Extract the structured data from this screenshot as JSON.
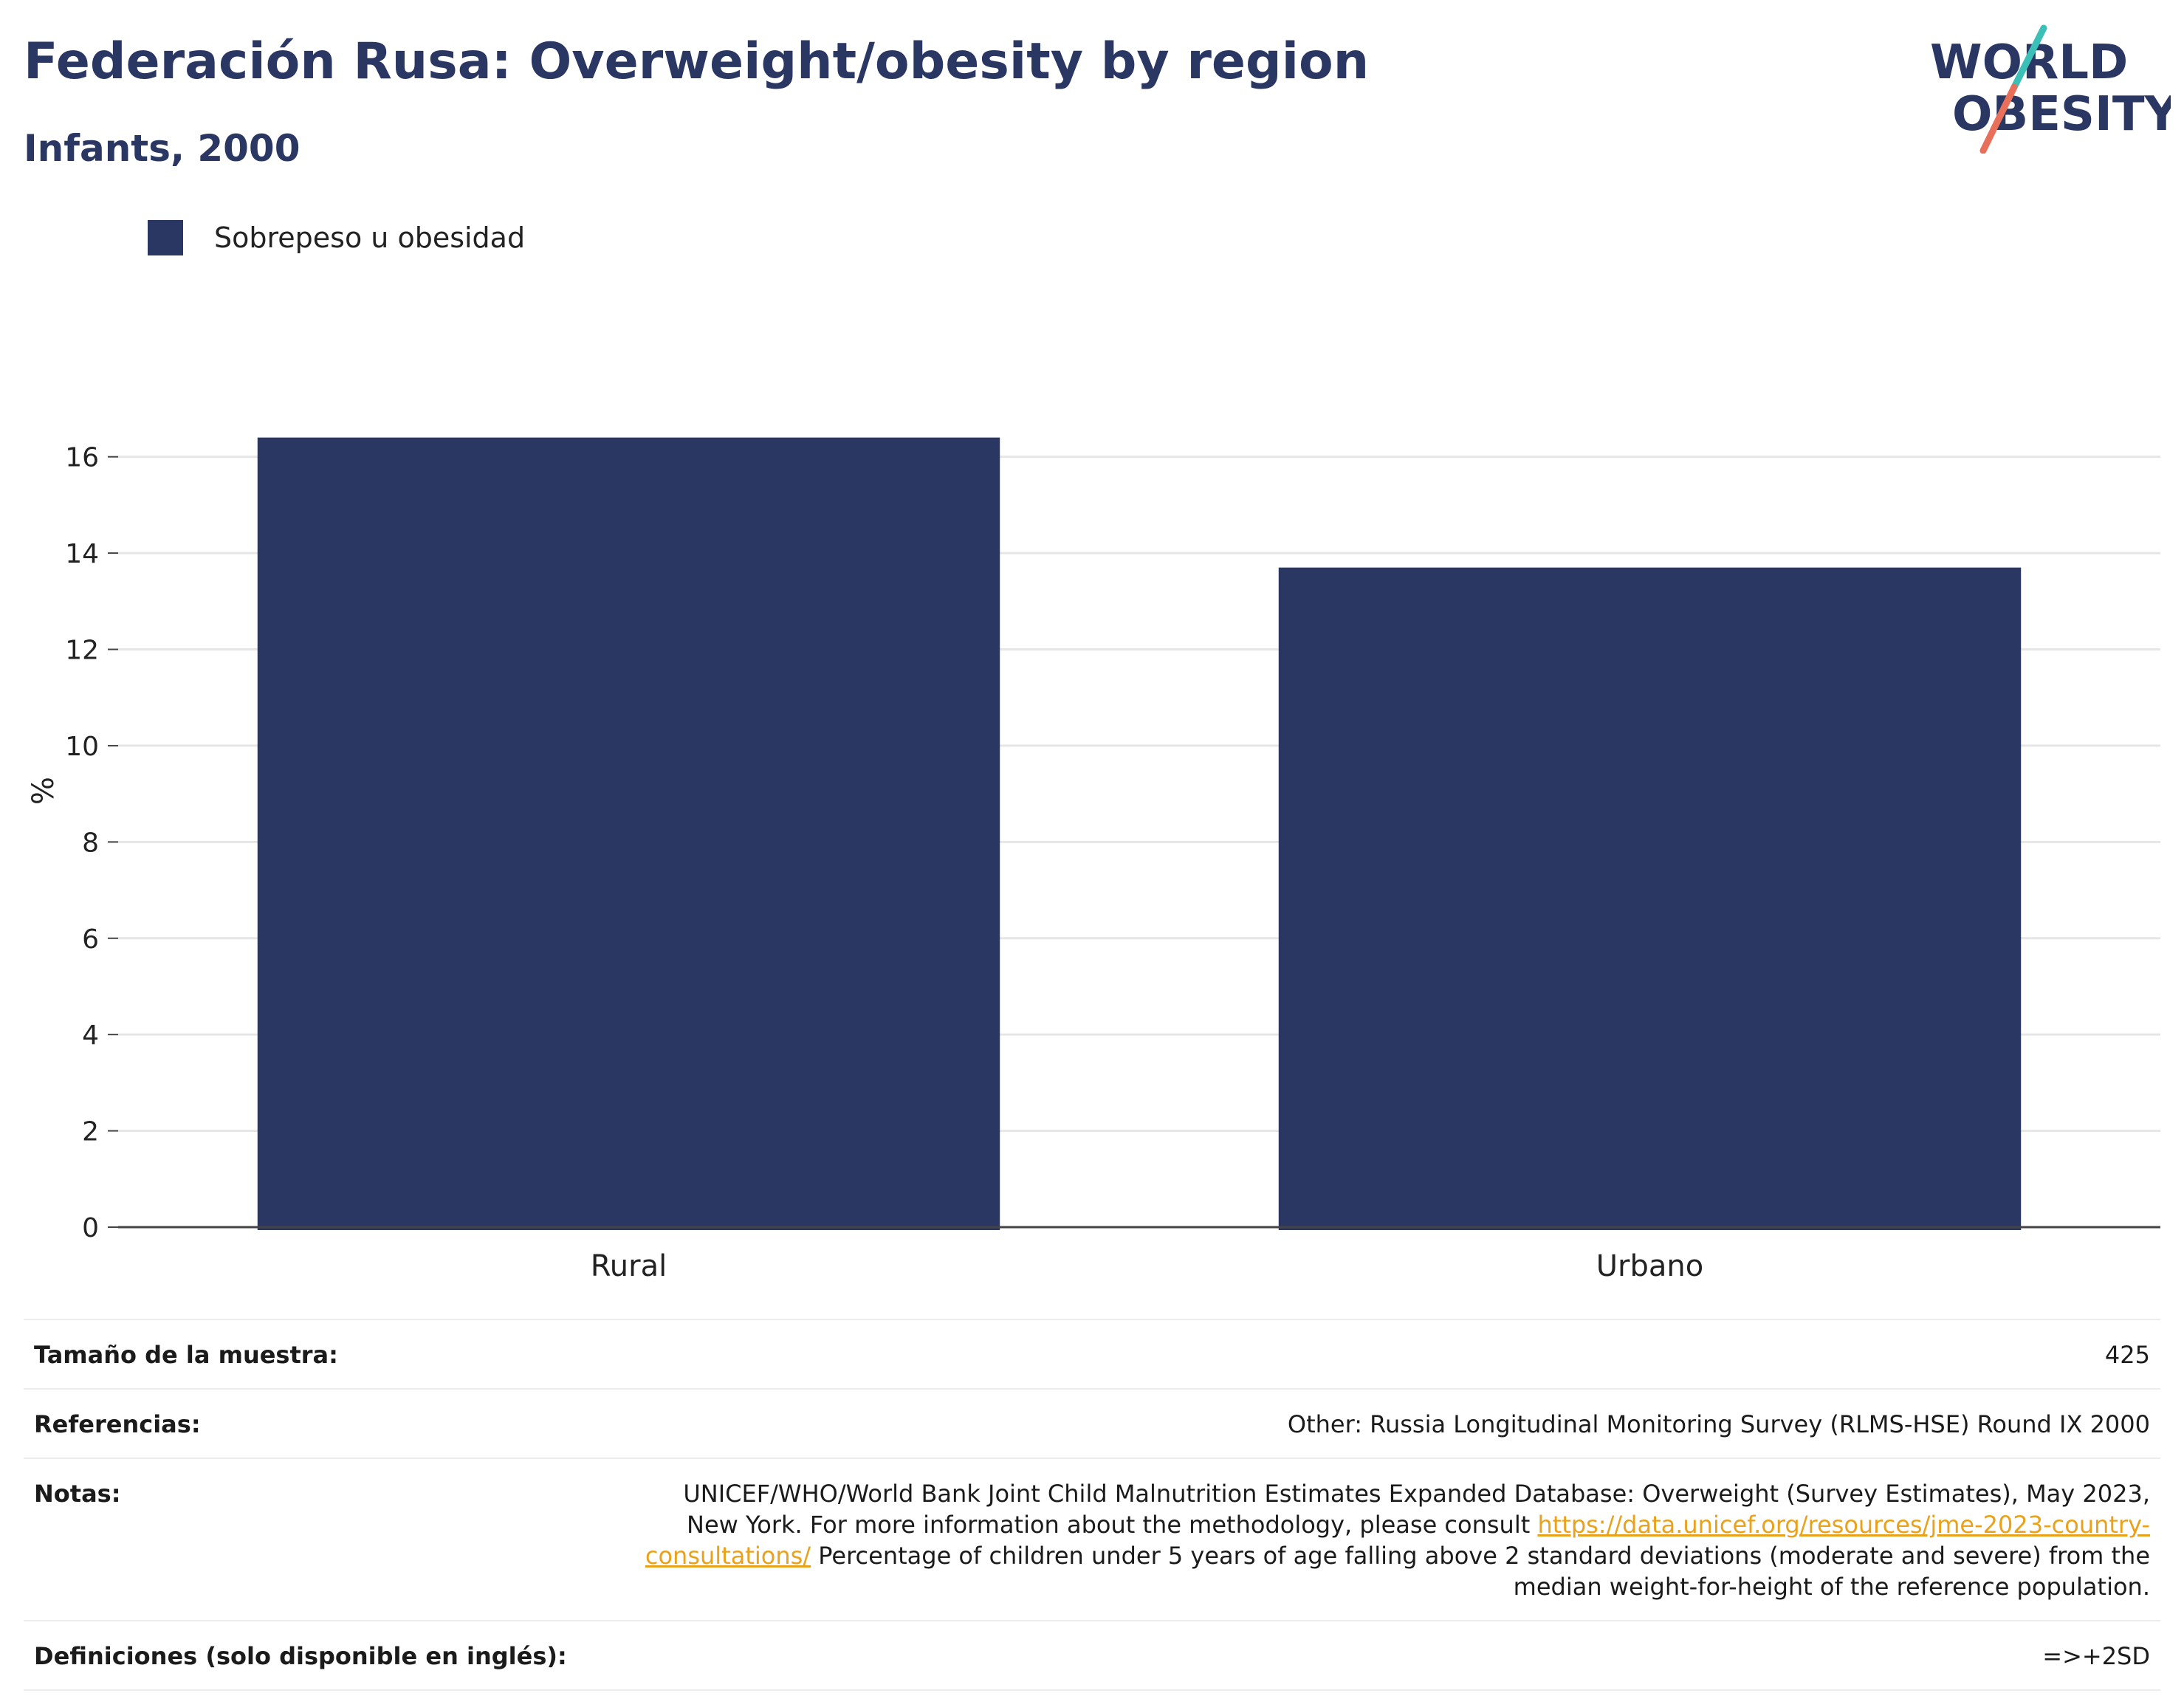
{
  "header": {
    "title": "Federación Rusa: Overweight/obesity by region",
    "subtitle": "Infants, 2000"
  },
  "logo": {
    "line1": "WORLD",
    "line2": "OBESITY",
    "colors": {
      "text": "#2a3763",
      "slash_top": "#3bbfb6",
      "slash_bottom": "#e8705a"
    }
  },
  "legend": {
    "items": [
      {
        "label": "Sobrepeso u obesidad",
        "color": "#2a3763"
      }
    ]
  },
  "chart_data": {
    "type": "bar",
    "categories": [
      "Rural",
      "Urbano"
    ],
    "series": [
      {
        "name": "Sobrepeso u obesidad",
        "values": [
          16.4,
          13.7
        ],
        "color": "#2a3763"
      }
    ],
    "ylabel": "%",
    "ylim": [
      0,
      16.9
    ],
    "yticks": [
      0,
      2,
      4,
      6,
      8,
      10,
      12,
      14,
      16
    ],
    "grid": true,
    "legend_position": "top-left"
  },
  "meta": {
    "sample_size_label": "Tamaño de la muestra:",
    "sample_size_value": "425",
    "references_label": "Referencias:",
    "references_value": "Other: Russia Longitudinal Monitoring Survey (RLMS-HSE) Round IX 2000",
    "notes_label": "Notas:",
    "notes_text_1": "UNICEF/WHO/World Bank Joint Child Malnutrition Estimates Expanded Database: Overweight (Survey Estimates), May 2023, New York. For more information about the methodology, please consult ",
    "notes_link": "https://data.unicef.org/resources/jme-2023-country-consultations/",
    "notes_text_2": " Percentage of children under 5 years of age falling above 2 standard deviations (moderate and severe) from the median weight-for-height of the reference population.",
    "definitions_label": "Definiciones (solo disponible en inglés):",
    "definitions_value": "=>+2SD"
  }
}
